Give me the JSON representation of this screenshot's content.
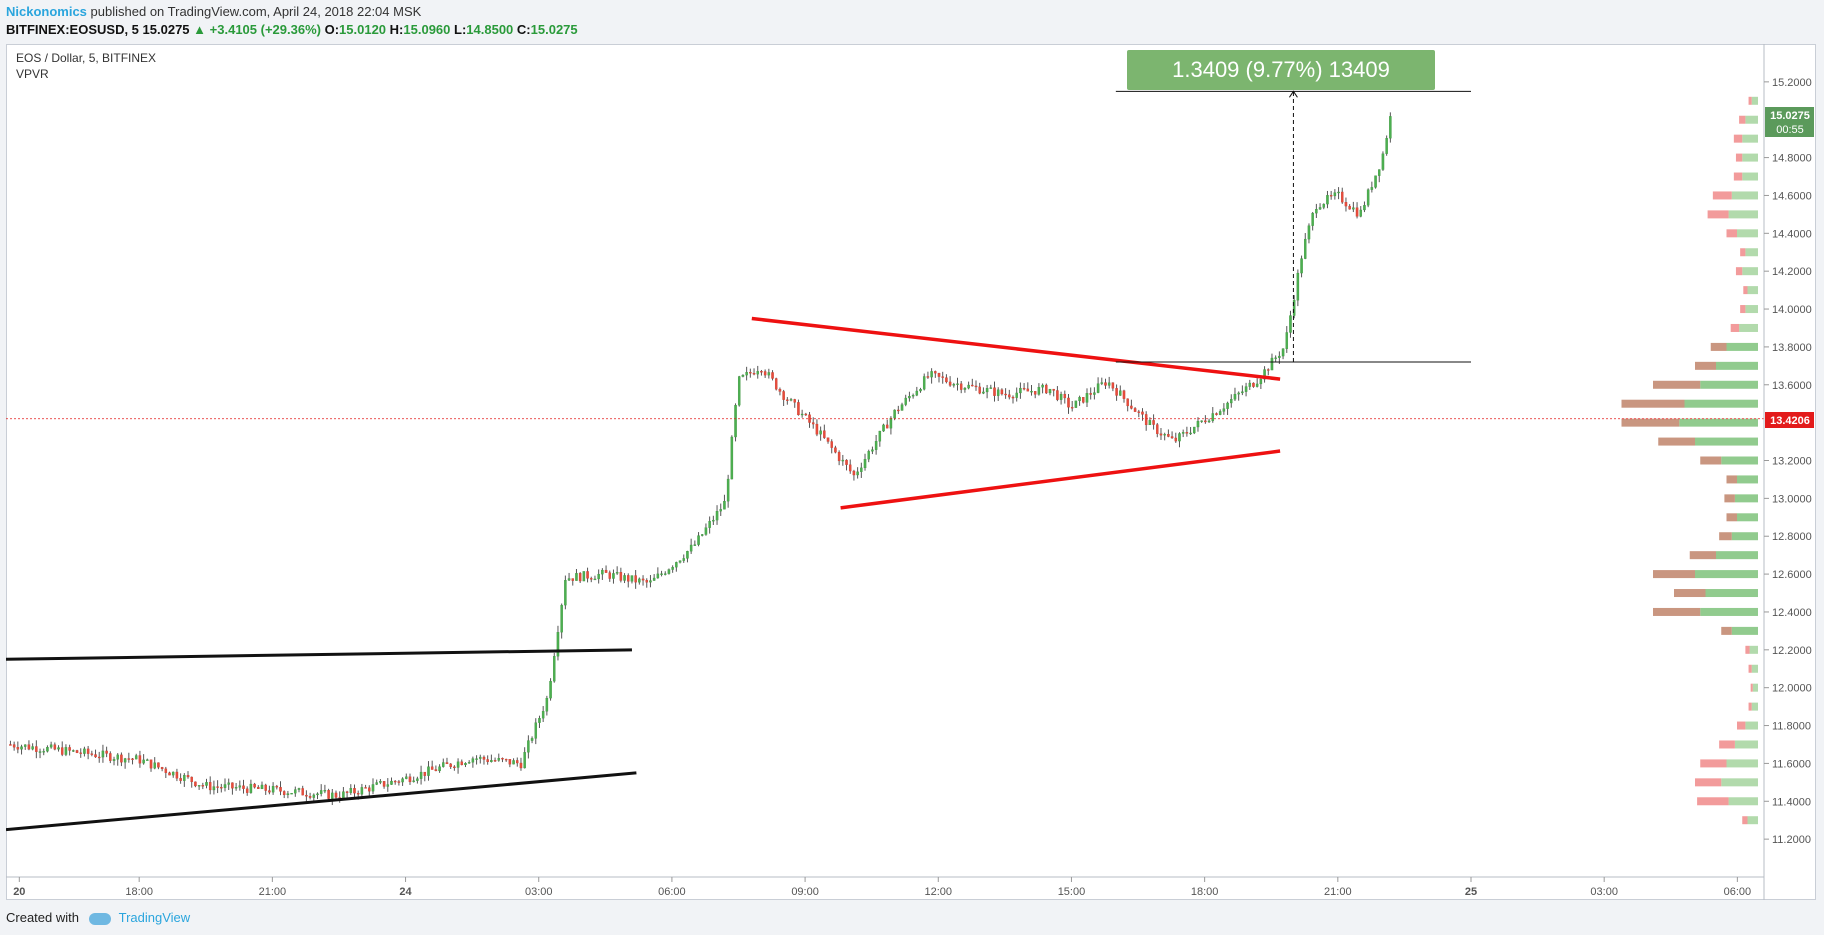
{
  "header": {
    "author": "Nickonomics",
    "published_text": "published on TradingView.com, April 24, 2018 22:04 MSK",
    "symbol": "BITFINEX:EOSUSD, 5",
    "last": "15.0275",
    "change": "▲ +3.4105 (+29.36%)",
    "o_label": "O:",
    "o_value": "15.0120",
    "h_label": "H:",
    "h_value": "15.0960",
    "l_label": "L:",
    "l_value": "14.8500",
    "c_label": "C:",
    "c_value": "15.0275"
  },
  "legend": {
    "title": "EOS / Dollar, 5, BITFINEX",
    "indicator": "VPVR"
  },
  "measure_label": "1.3409 (9.77%) 13409",
  "price_badge": {
    "value": "15.0275",
    "countdown": "00:55"
  },
  "crosshair_badge": "13.4206",
  "footer": {
    "created": "Created with",
    "brand": "TradingView"
  },
  "colors": {
    "up": "#53b987",
    "down": "#eb4d5c",
    "red_line": "#ee1111",
    "measure_bg": "#7cb56f",
    "vp_up": "#7ec27a",
    "vp_down": "#f08a8a",
    "vp_up_va": "#a5d49e",
    "vp_down_va": "#c0846a"
  },
  "chart_data": {
    "type": "candlestick",
    "title": "EOS / Dollar, 5, BITFINEX",
    "y_ticks": [
      "15.2000",
      "14.8000",
      "14.6000",
      "14.4000",
      "14.2000",
      "14.0000",
      "13.8000",
      "13.6000",
      "13.2000",
      "13.0000",
      "12.8000",
      "12.6000",
      "12.4000",
      "12.2000",
      "12.0000",
      "11.8000",
      "11.6000",
      "11.4000",
      "11.2000"
    ],
    "ylim": [
      11.0,
      15.4
    ],
    "x_ticks": [
      "20",
      "18:00",
      "21:00",
      "24",
      "03:00",
      "06:00",
      "09:00",
      "12:00",
      "15:00",
      "18:00",
      "21:00",
      "25",
      "03:00",
      "06:00"
    ],
    "x_range_hours": [
      -9.0,
      30.6
    ],
    "path_hours": [
      -8.9,
      -6.0,
      -4.5,
      -3.0,
      -1.5,
      0.0,
      1.5,
      2.6,
      3.2,
      3.6,
      4.5,
      5.5,
      6.5,
      7.2,
      7.5,
      8.0,
      8.5,
      9.3,
      10.1,
      11.0,
      11.8,
      12.5,
      13.5,
      14.5,
      15.0,
      15.8,
      16.8,
      17.3,
      18.5,
      19.2,
      19.8,
      20.2,
      20.5,
      21.0,
      21.5,
      22.0,
      22.2
    ],
    "path_prices": [
      11.7,
      11.62,
      11.48,
      11.46,
      11.43,
      11.52,
      11.63,
      11.6,
      11.95,
      12.58,
      12.6,
      12.55,
      12.75,
      12.98,
      13.62,
      13.7,
      13.55,
      13.35,
      13.12,
      13.45,
      13.65,
      13.6,
      13.55,
      13.58,
      13.48,
      13.62,
      13.38,
      13.3,
      13.5,
      13.63,
      13.8,
      14.3,
      14.55,
      14.6,
      14.5,
      14.8,
      15.03
    ],
    "volume_profile": {
      "prices": [
        11.3,
        11.4,
        11.5,
        11.6,
        11.7,
        11.8,
        11.9,
        12.0,
        12.1,
        12.2,
        12.3,
        12.4,
        12.5,
        12.6,
        12.7,
        12.8,
        12.9,
        13.0,
        13.1,
        13.2,
        13.3,
        13.4,
        13.5,
        13.6,
        13.7,
        13.8,
        13.9,
        14.0,
        14.1,
        14.2,
        14.3,
        14.4,
        14.5,
        14.6,
        14.7,
        14.8,
        14.9,
        15.0,
        15.1
      ],
      "up_volumes": [
        0.1,
        0.28,
        0.35,
        0.3,
        0.22,
        0.12,
        0.06,
        0.05,
        0.06,
        0.08,
        0.25,
        0.55,
        0.5,
        0.6,
        0.4,
        0.25,
        0.2,
        0.22,
        0.2,
        0.35,
        0.6,
        0.75,
        0.7,
        0.55,
        0.4,
        0.3,
        0.18,
        0.12,
        0.1,
        0.15,
        0.12,
        0.2,
        0.28,
        0.25,
        0.15,
        0.15,
        0.15,
        0.12,
        0.06
      ],
      "down_volumes": [
        0.05,
        0.3,
        0.25,
        0.25,
        0.15,
        0.08,
        0.03,
        0.02,
        0.03,
        0.04,
        0.1,
        0.45,
        0.3,
        0.4,
        0.25,
        0.12,
        0.1,
        0.1,
        0.1,
        0.2,
        0.35,
        0.55,
        0.6,
        0.45,
        0.2,
        0.15,
        0.08,
        0.05,
        0.04,
        0.06,
        0.05,
        0.1,
        0.2,
        0.18,
        0.08,
        0.06,
        0.08,
        0.06,
        0.03
      ]
    },
    "annotations": {
      "black_lines": [
        {
          "from": [
            -9.0,
            12.15
          ],
          "to": [
            5.1,
            12.2
          ]
        },
        {
          "from": [
            -9.0,
            11.25
          ],
          "to": [
            5.2,
            11.55
          ]
        }
      ],
      "red_lines": [
        {
          "from": [
            7.8,
            13.95
          ],
          "to": [
            19.7,
            13.63
          ]
        },
        {
          "from": [
            9.8,
            12.95
          ],
          "to": [
            19.7,
            13.25
          ]
        }
      ],
      "measure": {
        "from": [
          20.0,
          13.72
        ],
        "to": [
          20.0,
          15.15
        ],
        "left_hours": 16.0,
        "right_hours": 24.0
      },
      "crosshair_price": 13.4206
    }
  }
}
